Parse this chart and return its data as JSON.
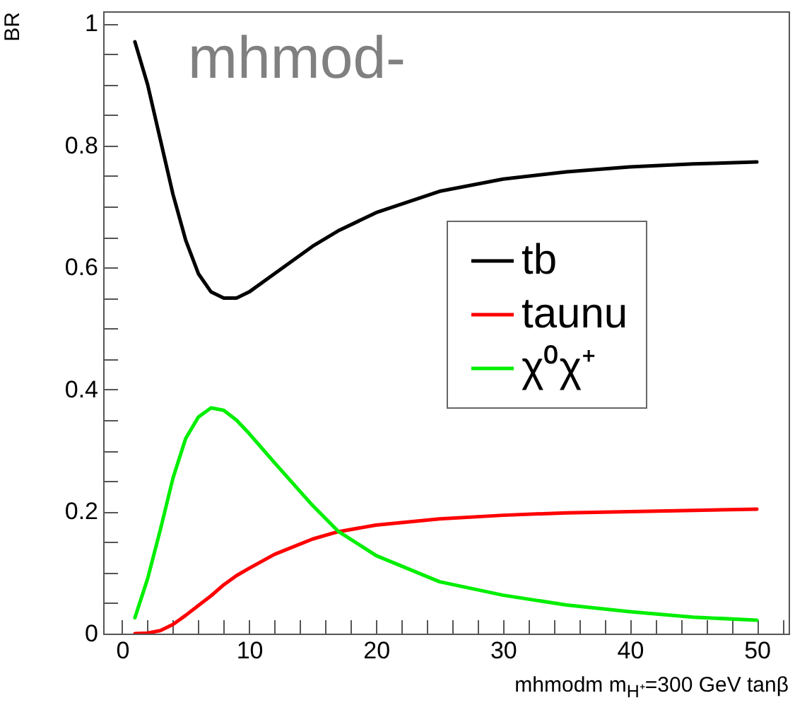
{
  "chart_data": {
    "type": "line",
    "title": "mhmod-",
    "xlabel": "mhmodm m$_{H⁺}$=300 GeV   tanβ",
    "ylabel": "BR",
    "x": [
      1,
      2,
      3,
      4,
      5,
      6,
      7,
      8,
      9,
      10,
      12,
      15,
      17,
      20,
      25,
      30,
      35,
      40,
      45,
      50
    ],
    "series": [
      {
        "name": "tb",
        "color": "#000000",
        "values": [
          0.97,
          0.9,
          0.81,
          0.72,
          0.645,
          0.59,
          0.56,
          0.55,
          0.55,
          0.56,
          0.59,
          0.635,
          0.66,
          0.69,
          0.725,
          0.745,
          0.757,
          0.765,
          0.77,
          0.773
        ]
      },
      {
        "name": "taunu",
        "color": "#ff0000",
        "values": [
          0.0,
          0.001,
          0.005,
          0.015,
          0.03,
          0.046,
          0.062,
          0.08,
          0.095,
          0.107,
          0.13,
          0.155,
          0.167,
          0.178,
          0.188,
          0.194,
          0.198,
          0.2,
          0.202,
          0.204
        ]
      },
      {
        "name": "χ⁰χ⁺",
        "color": "#00ee00",
        "values": [
          0.026,
          0.09,
          0.17,
          0.255,
          0.32,
          0.355,
          0.37,
          0.366,
          0.35,
          0.328,
          0.28,
          0.21,
          0.168,
          0.128,
          0.085,
          0.063,
          0.047,
          0.036,
          0.027,
          0.022
        ]
      }
    ],
    "xlim": [
      -1.5,
      52.5
    ],
    "ylim": [
      0,
      1.02
    ],
    "xticks": [
      0,
      {
        "value": 2,
        "label": null
      },
      {
        "value": 4,
        "label": null
      },
      {
        "value": 6,
        "label": null
      },
      {
        "value": 8,
        "label": null
      },
      10,
      {
        "value": 12,
        "label": null
      },
      {
        "value": 14,
        "label": null
      },
      {
        "value": 16,
        "label": null
      },
      {
        "value": 18,
        "label": null
      },
      20,
      {
        "value": 22,
        "label": null
      },
      {
        "value": 24,
        "label": null
      },
      {
        "value": 26,
        "label": null
      },
      {
        "value": 28,
        "label": null
      },
      30,
      {
        "value": 32,
        "label": null
      },
      {
        "value": 34,
        "label": null
      },
      {
        "value": 36,
        "label": null
      },
      {
        "value": 38,
        "label": null
      },
      40,
      {
        "value": 42,
        "label": null
      },
      {
        "value": 44,
        "label": null
      },
      {
        "value": 46,
        "label": null
      },
      {
        "value": 48,
        "label": null
      },
      50,
      {
        "value": 52,
        "label": null
      }
    ],
    "yticks": [
      0,
      {
        "value": 0.05,
        "label": null
      },
      {
        "value": 0.1,
        "label": null
      },
      {
        "value": 0.15,
        "label": null
      },
      0.2,
      {
        "value": 0.25,
        "label": null
      },
      {
        "value": 0.3,
        "label": null
      },
      {
        "value": 0.35,
        "label": null
      },
      0.4,
      {
        "value": 0.45,
        "label": null
      },
      {
        "value": 0.5,
        "label": null
      },
      {
        "value": 0.55,
        "label": null
      },
      0.6,
      {
        "value": 0.65,
        "label": null
      },
      {
        "value": 0.7,
        "label": null
      },
      {
        "value": 0.75,
        "label": null
      },
      0.8,
      {
        "value": 0.85,
        "label": null
      },
      {
        "value": 0.9,
        "label": null
      },
      {
        "value": 0.95,
        "label": null
      },
      1
    ],
    "legend": "right",
    "grid": false,
    "marker": "none",
    "line_style": "solid"
  }
}
